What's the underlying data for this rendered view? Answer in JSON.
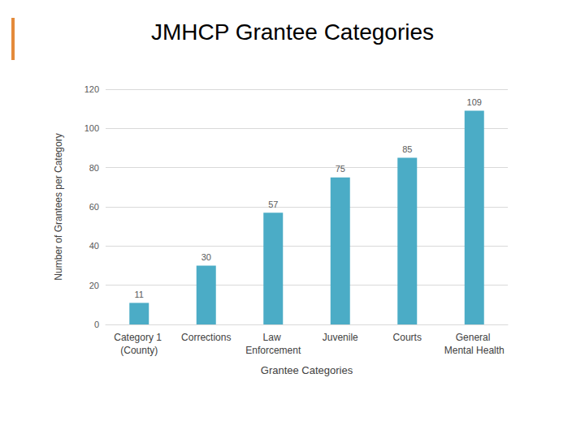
{
  "chart_data": {
    "type": "bar",
    "title": "JMHCP Grantee Categories",
    "x_label": "Grantee Categories",
    "y_label": "Number of Grantees per Category",
    "categories": [
      "Category 1 (County)",
      "Corrections",
      "Law Enforcement",
      "Juvenile",
      "Courts",
      "General Mental Health"
    ],
    "values": [
      11,
      30,
      57,
      75,
      85,
      109
    ],
    "color": "#4bacc6",
    "ylim": [
      0,
      120
    ],
    "yticks": [
      0,
      20,
      40,
      60,
      80,
      100,
      120
    ],
    "grid": true,
    "data_labels": true
  }
}
